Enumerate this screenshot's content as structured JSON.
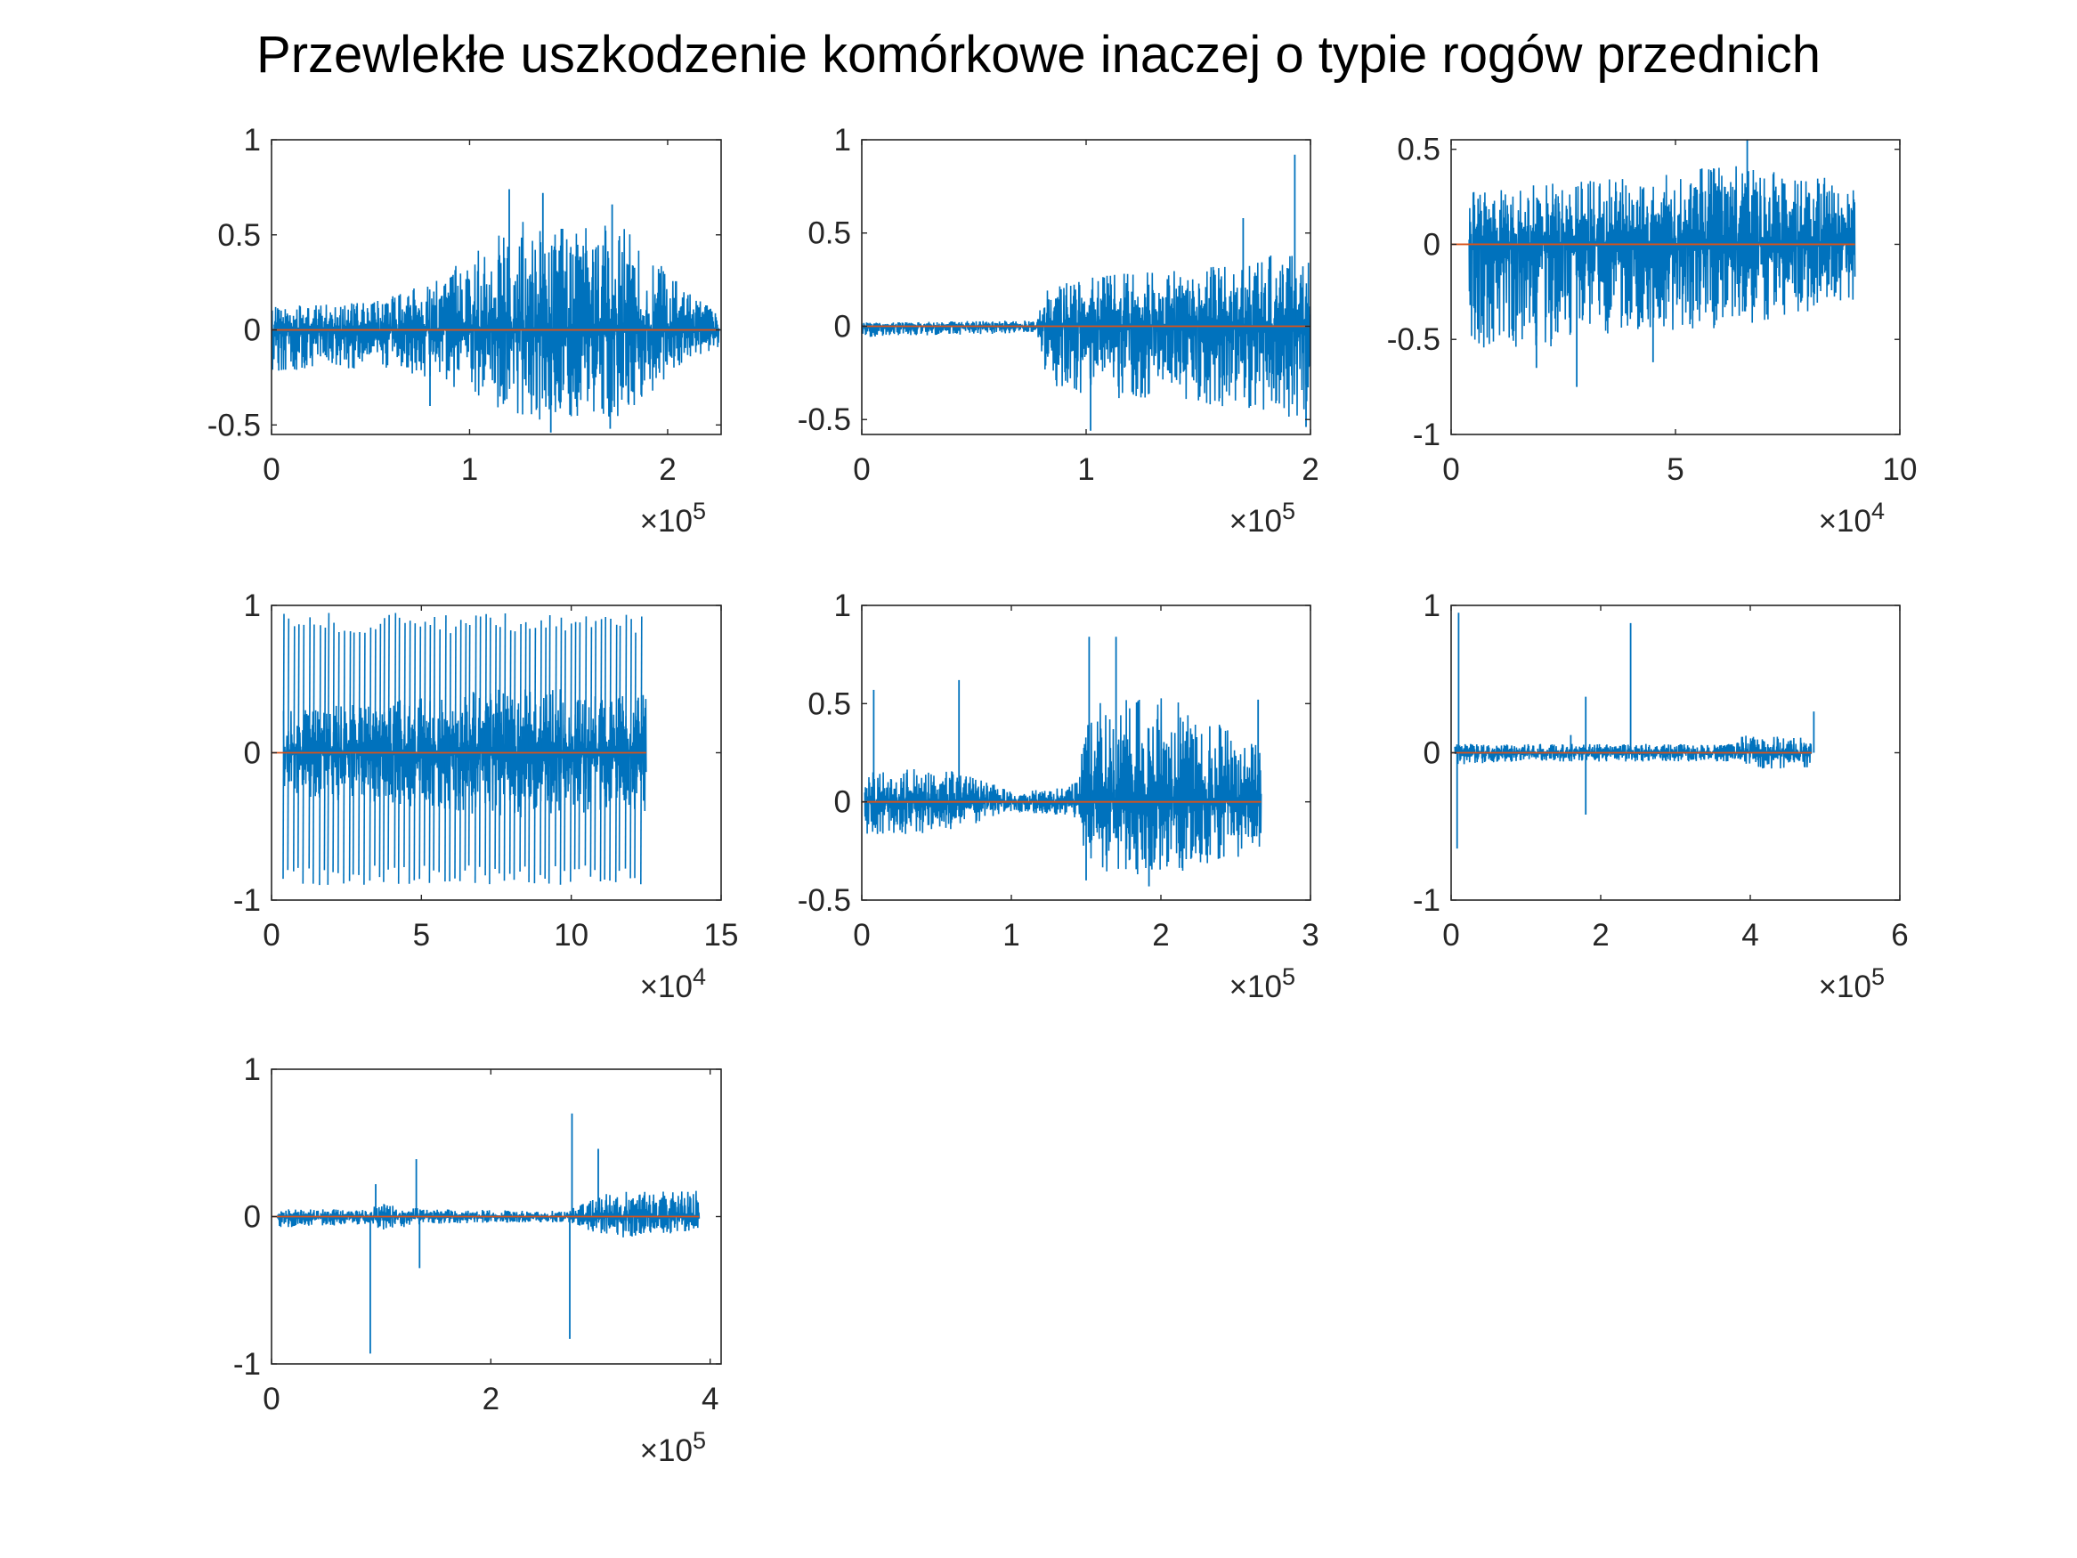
{
  "figure": {
    "title": "Przewlekłe uszkodzenie komórkowe inaczej o typie rogów przednich",
    "colors": {
      "signal": "#0072BD",
      "baseline": "#D95319",
      "axes": "#262626"
    }
  },
  "chart_data": [
    {
      "type": "line",
      "exponent_label": {
        "base": "×10",
        "exp": "5"
      },
      "xlim": [
        0,
        227000
      ],
      "ylim": [
        -0.55,
        1
      ],
      "xticks": [
        0,
        100000,
        200000
      ],
      "xtick_labels": [
        "0",
        "1",
        "2"
      ],
      "yticks": [
        -0.5,
        0,
        0.5,
        1
      ],
      "ytick_labels": [
        "-0.5",
        "0",
        "0.5",
        "1"
      ],
      "series": [
        {
          "role": "signal",
          "x_end": 226000,
          "envelope": [
            {
              "x": 0,
              "upper": 0.12,
              "lower": -0.22
            },
            {
              "x": 50000,
              "upper": 0.15,
              "lower": -0.2
            },
            {
              "x": 80000,
              "upper": 0.25,
              "lower": -0.25
            },
            {
              "x": 100000,
              "upper": 0.42,
              "lower": -0.35
            },
            {
              "x": 120000,
              "upper": 0.6,
              "lower": -0.45
            },
            {
              "x": 150000,
              "upper": 0.55,
              "lower": -0.5
            },
            {
              "x": 180000,
              "upper": 0.55,
              "lower": -0.45
            },
            {
              "x": 205000,
              "upper": 0.25,
              "lower": -0.2
            },
            {
              "x": 226000,
              "upper": 0.08,
              "lower": -0.1
            }
          ],
          "peaks": [
            {
              "x": 120000,
              "y": 0.74
            },
            {
              "x": 137000,
              "y": 0.72
            },
            {
              "x": 172000,
              "y": 0.66
            },
            {
              "x": 141000,
              "y": -0.54
            },
            {
              "x": 171000,
              "y": -0.52
            },
            {
              "x": 80000,
              "y": -0.4
            }
          ]
        },
        {
          "role": "baseline",
          "y": 0
        }
      ]
    },
    {
      "type": "line",
      "exponent_label": {
        "base": "×10",
        "exp": "5"
      },
      "xlim": [
        0,
        200000
      ],
      "ylim": [
        -0.58,
        1
      ],
      "xticks": [
        0,
        100000,
        200000
      ],
      "xtick_labels": [
        "0",
        "1",
        "2"
      ],
      "yticks": [
        -0.5,
        0,
        0.5,
        1
      ],
      "ytick_labels": [
        "-0.5",
        "0",
        "0.5",
        "1"
      ],
      "series": [
        {
          "role": "signal",
          "x_end": 200000,
          "envelope": [
            {
              "x": 0,
              "upper": 0.02,
              "lower": -0.06
            },
            {
              "x": 60000,
              "upper": 0.03,
              "lower": -0.04
            },
            {
              "x": 78000,
              "upper": 0.03,
              "lower": -0.03
            },
            {
              "x": 82000,
              "upper": 0.2,
              "lower": -0.3
            },
            {
              "x": 100000,
              "upper": 0.28,
              "lower": -0.4
            },
            {
              "x": 140000,
              "upper": 0.3,
              "lower": -0.4
            },
            {
              "x": 180000,
              "upper": 0.38,
              "lower": -0.48
            },
            {
              "x": 200000,
              "upper": 0.38,
              "lower": -0.5
            }
          ],
          "peaks": [
            {
              "x": 193000,
              "y": 0.92
            },
            {
              "x": 170000,
              "y": 0.58
            },
            {
              "x": 102000,
              "y": -0.56
            },
            {
              "x": 198000,
              "y": -0.54
            }
          ]
        },
        {
          "role": "baseline",
          "y": 0
        }
      ]
    },
    {
      "type": "line",
      "exponent_label": {
        "base": "×10",
        "exp": "4"
      },
      "xlim": [
        0,
        100000
      ],
      "ylim": [
        -1,
        0.55
      ],
      "xticks": [
        0,
        50000,
        100000
      ],
      "xtick_labels": [
        "0",
        "5",
        "10"
      ],
      "yticks": [
        -1,
        -0.5,
        0,
        0.5
      ],
      "ytick_labels": [
        "-1",
        "-0.5",
        "0",
        "0.5"
      ],
      "series": [
        {
          "role": "signal",
          "x_end": 90000,
          "envelope": [
            {
              "x": 4000,
              "upper": 0.28,
              "lower": -0.55
            },
            {
              "x": 20000,
              "upper": 0.32,
              "lower": -0.55
            },
            {
              "x": 40000,
              "upper": 0.35,
              "lower": -0.45
            },
            {
              "x": 60000,
              "upper": 0.42,
              "lower": -0.45
            },
            {
              "x": 80000,
              "upper": 0.38,
              "lower": -0.35
            },
            {
              "x": 90000,
              "upper": 0.3,
              "lower": -0.3
            }
          ],
          "peaks": [
            {
              "x": 66000,
              "y": 0.55
            },
            {
              "x": 28000,
              "y": -0.75
            },
            {
              "x": 19000,
              "y": -0.65
            },
            {
              "x": 45000,
              "y": -0.62
            }
          ]
        },
        {
          "role": "baseline",
          "y": 0
        }
      ]
    },
    {
      "type": "line",
      "exponent_label": {
        "base": "×10",
        "exp": "4"
      },
      "xlim": [
        0,
        150000
      ],
      "ylim": [
        -1,
        1
      ],
      "xticks": [
        0,
        50000,
        100000,
        150000
      ],
      "xtick_labels": [
        "0",
        "5",
        "10",
        "15"
      ],
      "yticks": [
        -1,
        0,
        1
      ],
      "ytick_labels": [
        "-1",
        "0",
        "1"
      ],
      "series": [
        {
          "role": "signal",
          "x_end": 125000,
          "envelope": [
            {
              "x": 4000,
              "upper": 0.3,
              "lower": -0.3
            },
            {
              "x": 40000,
              "upper": 0.35,
              "lower": -0.35
            },
            {
              "x": 80000,
              "upper": 0.45,
              "lower": -0.45
            },
            {
              "x": 125000,
              "upper": 0.4,
              "lower": -0.4
            }
          ],
          "spikes": {
            "from": 4000,
            "to": 123000,
            "count": 72,
            "upper": 0.95,
            "lower": -0.9
          }
        },
        {
          "role": "baseline",
          "y": 0
        }
      ]
    },
    {
      "type": "line",
      "exponent_label": {
        "base": "×10",
        "exp": "5"
      },
      "xlim": [
        0,
        300000
      ],
      "ylim": [
        -0.5,
        1
      ],
      "xticks": [
        0,
        100000,
        200000,
        300000
      ],
      "xtick_labels": [
        "0",
        "1",
        "2",
        "3"
      ],
      "yticks": [
        -0.5,
        0,
        0.5,
        1
      ],
      "ytick_labels": [
        "-0.5",
        "0",
        "0.5",
        "1"
      ],
      "series": [
        {
          "role": "signal",
          "x_end": 267000,
          "envelope": [
            {
              "x": 2000,
              "upper": 0.15,
              "lower": -0.18
            },
            {
              "x": 60000,
              "upper": 0.18,
              "lower": -0.15
            },
            {
              "x": 100000,
              "upper": 0.05,
              "lower": -0.05
            },
            {
              "x": 140000,
              "upper": 0.08,
              "lower": -0.08
            },
            {
              "x": 155000,
              "upper": 0.5,
              "lower": -0.35
            },
            {
              "x": 200000,
              "upper": 0.55,
              "lower": -0.38
            },
            {
              "x": 267000,
              "upper": 0.3,
              "lower": -0.25
            }
          ],
          "peaks": [
            {
              "x": 152000,
              "y": 0.84
            },
            {
              "x": 170000,
              "y": 0.84
            },
            {
              "x": 65000,
              "y": 0.62
            },
            {
              "x": 8000,
              "y": 0.57
            },
            {
              "x": 265000,
              "y": 0.52
            },
            {
              "x": 192000,
              "y": -0.43
            },
            {
              "x": 150000,
              "y": -0.4
            }
          ]
        },
        {
          "role": "baseline",
          "y": 0
        }
      ]
    },
    {
      "type": "line",
      "exponent_label": {
        "base": "×10",
        "exp": "5"
      },
      "xlim": [
        0,
        600000
      ],
      "ylim": [
        -1,
        1
      ],
      "xticks": [
        0,
        200000,
        400000,
        600000
      ],
      "xtick_labels": [
        "0",
        "2",
        "4",
        "6"
      ],
      "yticks": [
        -1,
        0,
        1
      ],
      "ytick_labels": [
        "-1",
        "0",
        "1"
      ],
      "series": [
        {
          "role": "signal",
          "x_end": 482000,
          "envelope": [
            {
              "x": 5000,
              "upper": 0.06,
              "lower": -0.08
            },
            {
              "x": 100000,
              "upper": 0.06,
              "lower": -0.06
            },
            {
              "x": 240000,
              "upper": 0.06,
              "lower": -0.06
            },
            {
              "x": 380000,
              "upper": 0.06,
              "lower": -0.06
            },
            {
              "x": 390000,
              "upper": 0.12,
              "lower": -0.12
            },
            {
              "x": 482000,
              "upper": 0.1,
              "lower": -0.1
            }
          ],
          "peaks": [
            {
              "x": 10000,
              "y": 0.95
            },
            {
              "x": 8000,
              "y": -0.65
            },
            {
              "x": 240000,
              "y": 0.88
            },
            {
              "x": 180000,
              "y": 0.38
            },
            {
              "x": 160000,
              "y": 0.12
            },
            {
              "x": 180000,
              "y": -0.42
            },
            {
              "x": 485000,
              "y": 0.28
            }
          ]
        },
        {
          "role": "baseline",
          "y": 0
        }
      ]
    },
    {
      "type": "line",
      "exponent_label": {
        "base": "×10",
        "exp": "5"
      },
      "xlim": [
        0,
        410000
      ],
      "ylim": [
        -1,
        1
      ],
      "xticks": [
        0,
        200000,
        400000
      ],
      "xtick_labels": [
        "0",
        "2",
        "4"
      ],
      "yticks": [
        -1,
        0,
        1
      ],
      "ytick_labels": [
        "-1",
        "0",
        "1"
      ],
      "series": [
        {
          "role": "signal",
          "x_end": 390000,
          "envelope": [
            {
              "x": 5000,
              "upper": 0.05,
              "lower": -0.08
            },
            {
              "x": 90000,
              "upper": 0.05,
              "lower": -0.05
            },
            {
              "x": 100000,
              "upper": 0.1,
              "lower": -0.1
            },
            {
              "x": 140000,
              "upper": 0.05,
              "lower": -0.05
            },
            {
              "x": 270000,
              "upper": 0.04,
              "lower": -0.04
            },
            {
              "x": 310000,
              "upper": 0.18,
              "lower": -0.15
            },
            {
              "x": 390000,
              "upper": 0.18,
              "lower": -0.1
            }
          ],
          "peaks": [
            {
              "x": 90000,
              "y": -0.93
            },
            {
              "x": 95000,
              "y": 0.22
            },
            {
              "x": 132000,
              "y": 0.39
            },
            {
              "x": 135000,
              "y": -0.35
            },
            {
              "x": 274000,
              "y": 0.7
            },
            {
              "x": 272000,
              "y": -0.83
            },
            {
              "x": 298000,
              "y": 0.46
            }
          ]
        },
        {
          "role": "baseline",
          "y": 0
        }
      ]
    }
  ]
}
